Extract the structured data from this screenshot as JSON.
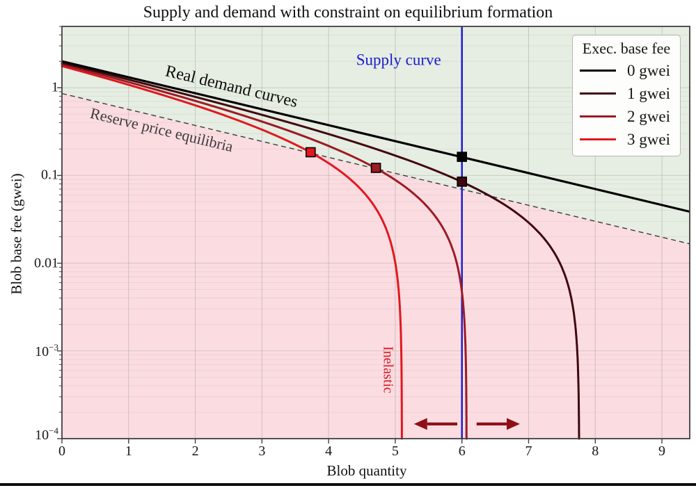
{
  "title": "Supply and demand with constraint on equilibrium formation",
  "xlabel": "Blob quantity",
  "ylabel": "Blob base fee (gwei)",
  "legend": {
    "title": "Exec. base fee",
    "entries": [
      {
        "label": "0 gwei",
        "color": "#000000"
      },
      {
        "label": "1 gwei",
        "color": "#400710"
      },
      {
        "label": "2 gwei",
        "color": "#9c1b24"
      },
      {
        "label": "3 gwei",
        "color": "#e2171e"
      }
    ]
  },
  "chart_data": {
    "type": "line",
    "title": "Supply and demand with constraint on equilibrium formation",
    "xlabel": "Blob quantity",
    "ylabel": "Blob base fee (gwei)",
    "xlim": [
      0,
      9.417
    ],
    "ylim": [
      0.0001,
      5.0
    ],
    "y_log_scale": true,
    "grid": true,
    "x_ticks": [
      0,
      1,
      2,
      3,
      4,
      5,
      6,
      7,
      8,
      9
    ],
    "y_ticks": [
      {
        "v": 1,
        "label": "1"
      },
      {
        "v": 0.1,
        "label": "0.1"
      },
      {
        "v": 0.01,
        "label": "0.01"
      },
      {
        "v": 0.001,
        "base": "10",
        "exp": "−3"
      },
      {
        "v": 0.0001,
        "base": "10",
        "exp": "−4"
      }
    ],
    "regions": {
      "above_reserve_color": "#e6ede2",
      "below_reserve_color": "#fbdce1"
    },
    "supply_curve": {
      "x": 6.0,
      "color": "#2424cd",
      "label": "Supply curve"
    },
    "demand_model": {
      "comment": "blob fee v(x) = A*(10^(-k*x) - 10^(-k*asymptote)); 0-gwei curve is straight in log space",
      "A": 2.0,
      "k": 0.182,
      "series": [
        {
          "name": "0 gwei",
          "exec_fee_gwei": 0,
          "asymptote_x": null,
          "color": "#000000",
          "width": 3.2
        },
        {
          "name": "1 gwei",
          "exec_fee_gwei": 1,
          "asymptote_x": 7.76,
          "color": "#400710",
          "width": 3.0
        },
        {
          "name": "2 gwei",
          "exec_fee_gwei": 2,
          "asymptote_x": 6.07,
          "color": "#9c1b24",
          "width": 3.0
        },
        {
          "name": "3 gwei",
          "exec_fee_gwei": 3,
          "asymptote_x": 5.1,
          "color": "#e2171e",
          "width": 3.0
        }
      ]
    },
    "reserve_price_line": {
      "A": 0.86,
      "k": 0.182,
      "style": "dashed",
      "color": "#3a3a3a",
      "width": 1.4
    },
    "equilibrium_markers": [
      {
        "x": 6.0,
        "y": 0.163,
        "color": "#000000"
      },
      {
        "x": 6.0,
        "y": 0.085,
        "color": "#400710"
      },
      {
        "x": 4.71,
        "y": 0.122,
        "color": "#9c1b24"
      },
      {
        "x": 3.73,
        "y": 0.184,
        "color": "#e2171e"
      }
    ],
    "arrows": {
      "color": "#8e1016",
      "items": [
        {
          "from_x": 5.93,
          "to_x": 5.28,
          "y": 0.000147
        },
        {
          "from_x": 6.22,
          "to_x": 6.87,
          "y": 0.000147
        }
      ]
    },
    "annotations": [
      {
        "text": "Real demand curves",
        "x": 2.54,
        "y": 1.0,
        "rotation": 13.5,
        "color": "#0d0d0d",
        "size": 24
      },
      {
        "text": "Reserve price equilibria",
        "x": 1.49,
        "y": 0.318,
        "rotation": 13.5,
        "color": "#3c3c3c",
        "size": 22
      },
      {
        "text": "Supply curve",
        "x": 5.05,
        "y": 2.0,
        "rotation": 0,
        "color": "#1b1bd1",
        "size": 23
      },
      {
        "text": "Inelastic",
        "x": 4.876,
        "y": 0.00061,
        "rotation": 90,
        "color": "#e0161f",
        "size": 20
      }
    ]
  }
}
